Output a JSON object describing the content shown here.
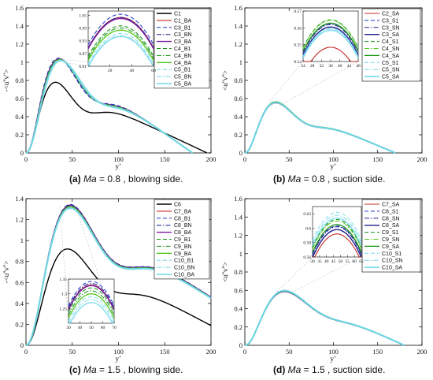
{
  "colors": {
    "black": "#000000",
    "red": "#c62828",
    "blue": "#1a33cc",
    "navy": "#1c1c8c",
    "purple": "#7a1fa0",
    "green": "#169116",
    "lime": "#55c81e",
    "cyan": "#6fd8ea",
    "gray": "#c0c0c0"
  },
  "captions": [
    {
      "id": "a",
      "label": "(a)",
      "ma": "Ma",
      "eq": " = 0.8",
      "side": " , blowing side."
    },
    {
      "id": "b",
      "label": "(b)",
      "ma": "Ma",
      "eq": " = 0.8",
      "side": " , suction side."
    },
    {
      "id": "c",
      "label": "(c)",
      "ma": "Ma",
      "eq": " = 1.5",
      "side": " , blowing side."
    },
    {
      "id": "d",
      "label": "(d)",
      "ma": "Ma",
      "eq": " = 1.5",
      "side": " , suction side."
    }
  ],
  "chart_data": [
    {
      "id": "a",
      "type": "line",
      "xlabel": "y+",
      "ylabel": "-<u''v''>",
      "xlim": [
        0,
        200
      ],
      "ylim": [
        0,
        1.6
      ],
      "xticks": [
        0,
        50,
        100,
        150,
        200
      ],
      "yticks": [
        0,
        0.2,
        0.4,
        0.6,
        0.8,
        1.0,
        1.2,
        1.4,
        1.6
      ],
      "ytick_labels": [
        "0",
        "0.2",
        "0.4",
        "0.6",
        "0.8",
        "1",
        "1.2",
        "1.4",
        "1.6"
      ],
      "legend_position": "top-right",
      "series": [
        {
          "name": "C1",
          "color": "black",
          "dash": "solid",
          "width": 1.4,
          "peak": 0.78,
          "xpeak": 32,
          "xend": 196
        },
        {
          "name": "C1_BA",
          "color": "red",
          "dash": "solid",
          "width": 1.1,
          "peak": 1.04,
          "xpeak": 36,
          "xend": 180
        },
        {
          "name": "C3_B1",
          "color": "blue",
          "dash": "dash",
          "width": 1.0,
          "peak": 1.045,
          "xpeak": 35,
          "xend": 180
        },
        {
          "name": "C3_BN",
          "color": "navy",
          "dash": "dashdot",
          "width": 1.0,
          "peak": 1.04,
          "xpeak": 36,
          "xend": 180
        },
        {
          "name": "C3_BA",
          "color": "purple",
          "dash": "solid",
          "width": 1.4,
          "peak": 1.038,
          "xpeak": 36,
          "xend": 180
        },
        {
          "name": "C4_B1",
          "color": "green",
          "dash": "dash",
          "width": 1.0,
          "peak": 1.035,
          "xpeak": 36,
          "xend": 180
        },
        {
          "name": "C4_BN",
          "color": "green",
          "dash": "dashdot",
          "width": 1.0,
          "peak": 1.03,
          "xpeak": 37,
          "xend": 180
        },
        {
          "name": "C4_BA",
          "color": "lime",
          "dash": "solid",
          "width": 1.3,
          "peak": 1.028,
          "xpeak": 37,
          "xend": 180
        },
        {
          "name": "C5_B1",
          "color": "cyan",
          "dash": "dash",
          "width": 1.0,
          "peak": 1.025,
          "xpeak": 37,
          "xend": 180
        },
        {
          "name": "C5_BN",
          "color": "cyan",
          "dash": "dashdot",
          "width": 1.0,
          "peak": 1.02,
          "xpeak": 37,
          "xend": 180
        },
        {
          "name": "C5_BA",
          "color": "cyan",
          "dash": "solid",
          "width": 2.2,
          "peak": 1.02,
          "xpeak": 38,
          "xend": 180
        }
      ],
      "inset": {
        "xlim": [
          0,
          60
        ],
        "ylim": [
          0.81,
          1.07
        ],
        "xticks": [
          20,
          40,
          60
        ],
        "xtick_labels": [
          "20",
          "40",
          "60"
        ],
        "yticks": [
          0.81,
          0.87,
          0.93,
          0.99,
          1.05
        ],
        "ytick_labels": [
          "0.81",
          "0.87",
          "0.93",
          "0.99",
          "1.05"
        ],
        "peaks": [
          1.04,
          1.055,
          1.04,
          1.035,
          1.0,
          0.99,
          0.98,
          0.965,
          0.955,
          0.95
        ]
      }
    },
    {
      "id": "b",
      "type": "line",
      "xlabel": "y+",
      "ylabel": "<u''v''>",
      "xlim": [
        0,
        200
      ],
      "ylim": [
        0,
        1.6
      ],
      "xticks": [
        0,
        50,
        100,
        150,
        200
      ],
      "yticks": [
        0,
        0.2,
        0.4,
        0.6,
        0.8,
        1.0,
        1.2,
        1.4,
        1.6
      ],
      "ytick_labels": [
        "0",
        "0.2",
        "0.4",
        "0.6",
        "0.8",
        "1",
        "1.2",
        "1.4",
        "1.6"
      ],
      "legend_position": "top-right",
      "series": [
        {
          "name": "C2_SA",
          "color": "red",
          "dash": "solid",
          "width": 1.1,
          "peak": 0.55,
          "xpeak": 35,
          "xend": 170
        },
        {
          "name": "C3_S1",
          "color": "blue",
          "dash": "dash",
          "width": 1.0,
          "peak": 0.562,
          "xpeak": 35,
          "xend": 170
        },
        {
          "name": "C3_SN",
          "color": "navy",
          "dash": "dashdot",
          "width": 1.0,
          "peak": 0.562,
          "xpeak": 35,
          "xend": 170
        },
        {
          "name": "C3_SA",
          "color": "navy",
          "dash": "solid",
          "width": 1.4,
          "peak": 0.56,
          "xpeak": 35,
          "xend": 170
        },
        {
          "name": "C4_S1",
          "color": "green",
          "dash": "dash",
          "width": 1.0,
          "peak": 0.565,
          "xpeak": 35,
          "xend": 170
        },
        {
          "name": "C4_SN",
          "color": "lime",
          "dash": "dashdot",
          "width": 1.0,
          "peak": 0.564,
          "xpeak": 35,
          "xend": 170
        },
        {
          "name": "C4_SA",
          "color": "green",
          "dash": "solid",
          "width": 1.3,
          "peak": 0.562,
          "xpeak": 35,
          "xend": 170
        },
        {
          "name": "C5_S1",
          "color": "cyan",
          "dash": "dash",
          "width": 1.0,
          "peak": 0.558,
          "xpeak": 35,
          "xend": 170
        },
        {
          "name": "C5_SN",
          "color": "cyan",
          "dash": "dashdot",
          "width": 1.0,
          "peak": 0.556,
          "xpeak": 35,
          "xend": 170
        },
        {
          "name": "C5_SA",
          "color": "cyan",
          "dash": "solid",
          "width": 2.2,
          "peak": 0.555,
          "xpeak": 35,
          "xend": 170
        }
      ],
      "inset": {
        "xlim": [
          24,
          48
        ],
        "ylim": [
          0.54,
          0.57
        ],
        "xticks": [
          24,
          28,
          32,
          36,
          40,
          44,
          48
        ],
        "xtick_labels": [
          "24",
          "28",
          "32",
          "36",
          "40",
          "44",
          "48"
        ],
        "yticks": [
          0.54,
          0.55,
          0.56,
          0.57
        ],
        "ytick_labels": [
          "0.54",
          "0.55",
          "0.56",
          "0.57"
        ],
        "peaks": [
          0.5485,
          0.5625,
          0.562,
          0.5605,
          0.5648,
          0.5645,
          0.5628,
          0.5598,
          0.5592,
          0.5585
        ]
      }
    },
    {
      "id": "c",
      "type": "line",
      "xlabel": "y+",
      "ylabel": "-<u''v''>",
      "xlim": [
        0,
        200
      ],
      "ylim": [
        0,
        1.4
      ],
      "xticks": [
        0,
        50,
        100,
        150,
        200
      ],
      "yticks": [
        0,
        0.2,
        0.4,
        0.6,
        0.8,
        1.0,
        1.2,
        1.4
      ],
      "ytick_labels": [
        "0",
        "0.2",
        "0.4",
        "0.6",
        "0.8",
        "1",
        "1.2",
        "1.4"
      ],
      "legend_position": "top-right",
      "series": [
        {
          "name": "C6",
          "color": "black",
          "dash": "solid",
          "width": 1.4,
          "peak": 0.92,
          "xpeak": 45,
          "xend": 240
        },
        {
          "name": "C7_BA",
          "color": "red",
          "dash": "solid",
          "width": 1.1,
          "peak": 1.34,
          "xpeak": 48,
          "xend": 280
        },
        {
          "name": "C8_B1",
          "color": "blue",
          "dash": "dash",
          "width": 1.0,
          "peak": 1.345,
          "xpeak": 48,
          "xend": 280
        },
        {
          "name": "C8_BN",
          "color": "navy",
          "dash": "dashdot",
          "width": 1.0,
          "peak": 1.34,
          "xpeak": 48,
          "xend": 280
        },
        {
          "name": "C8_BA",
          "color": "purple",
          "dash": "solid",
          "width": 1.4,
          "peak": 1.335,
          "xpeak": 48,
          "xend": 280
        },
        {
          "name": "C9_B1",
          "color": "green",
          "dash": "dash",
          "width": 1.0,
          "peak": 1.33,
          "xpeak": 48,
          "xend": 280
        },
        {
          "name": "C9_BN",
          "color": "green",
          "dash": "dashdot",
          "width": 1.0,
          "peak": 1.325,
          "xpeak": 48,
          "xend": 280
        },
        {
          "name": "C9_BA",
          "color": "lime",
          "dash": "solid",
          "width": 1.3,
          "peak": 1.32,
          "xpeak": 48,
          "xend": 280
        },
        {
          "name": "C10_B1",
          "color": "cyan",
          "dash": "dash",
          "width": 1.0,
          "peak": 1.315,
          "xpeak": 48,
          "xend": 280
        },
        {
          "name": "C10_BN",
          "color": "cyan",
          "dash": "dashdot",
          "width": 1.0,
          "peak": 1.31,
          "xpeak": 48,
          "xend": 280
        },
        {
          "name": "C10_BA",
          "color": "cyan",
          "dash": "solid",
          "width": 2.2,
          "peak": 1.31,
          "xpeak": 48,
          "xend": 280
        }
      ],
      "inset": {
        "xlim": [
          30,
          70
        ],
        "ylim": [
          1.2,
          1.35
        ],
        "xticks": [
          30,
          40,
          50,
          60,
          70
        ],
        "xtick_labels": [
          "30",
          "40",
          "50",
          "60",
          "70"
        ],
        "yticks": [
          1.25,
          1.3,
          1.35
        ],
        "ytick_labels": [
          "1.25",
          "1.3",
          "1.35"
        ],
        "peaks": [
          1.33,
          1.342,
          1.335,
          1.328,
          1.32,
          1.31,
          1.3,
          1.29,
          1.28,
          1.27
        ]
      }
    },
    {
      "id": "d",
      "type": "line",
      "xlabel": "y+",
      "ylabel": "<u''v''>",
      "xlim": [
        0,
        200
      ],
      "ylim": [
        0,
        1.6
      ],
      "xticks": [
        0,
        50,
        100,
        150,
        200
      ],
      "yticks": [
        0,
        0.2,
        0.4,
        0.6,
        0.8,
        1.0,
        1.2,
        1.4,
        1.6
      ],
      "ytick_labels": [
        "0",
        "0.2",
        "0.4",
        "0.6",
        "0.8",
        "1",
        "1.2",
        "1.4",
        "1.6"
      ],
      "legend_position": "top-right",
      "series": [
        {
          "name": "C7_SA",
          "color": "red",
          "dash": "solid",
          "width": 1.1,
          "peak": 0.585,
          "xpeak": 45,
          "xend": 180
        },
        {
          "name": "C8_S1",
          "color": "blue",
          "dash": "dash",
          "width": 1.0,
          "peak": 0.59,
          "xpeak": 45,
          "xend": 180
        },
        {
          "name": "C8_SN",
          "color": "navy",
          "dash": "dashdot",
          "width": 1.0,
          "peak": 0.59,
          "xpeak": 45,
          "xend": 180
        },
        {
          "name": "C8_SA",
          "color": "navy",
          "dash": "solid",
          "width": 1.4,
          "peak": 0.588,
          "xpeak": 45,
          "xend": 180
        },
        {
          "name": "C9_S1",
          "color": "green",
          "dash": "dash",
          "width": 1.0,
          "peak": 0.595,
          "xpeak": 45,
          "xend": 180
        },
        {
          "name": "C9_SN",
          "color": "lime",
          "dash": "dashdot",
          "width": 1.0,
          "peak": 0.594,
          "xpeak": 45,
          "xend": 180
        },
        {
          "name": "C9_SA",
          "color": "green",
          "dash": "solid",
          "width": 1.3,
          "peak": 0.592,
          "xpeak": 45,
          "xend": 180
        },
        {
          "name": "C10_S1",
          "color": "cyan",
          "dash": "dash",
          "width": 1.0,
          "peak": 0.6,
          "xpeak": 45,
          "xend": 180
        },
        {
          "name": "C10_SN",
          "color": "cyan",
          "dash": "dashdot",
          "width": 1.0,
          "peak": 0.598,
          "xpeak": 45,
          "xend": 180
        },
        {
          "name": "C10_SA",
          "color": "cyan",
          "dash": "solid",
          "width": 2.2,
          "peak": 0.596,
          "xpeak": 45,
          "xend": 180
        }
      ],
      "inset": {
        "xlim": [
          30,
          65
        ],
        "ylim": [
          0.56,
          0.63
        ],
        "xticks": [
          30,
          35,
          40,
          45,
          50,
          55,
          60,
          65
        ],
        "xtick_labels": [
          "30",
          "35",
          "40",
          "45",
          "50",
          "55",
          "60",
          "65"
        ],
        "yticks": [
          0.56,
          0.58,
          0.6,
          0.62
        ],
        "ytick_labels": [
          "0.56",
          "0.58",
          "0.6",
          "0.62"
        ],
        "peaks": [
          0.592,
          0.603,
          0.602,
          0.598,
          0.612,
          0.61,
          0.605,
          0.622,
          0.618,
          0.614
        ]
      }
    }
  ]
}
